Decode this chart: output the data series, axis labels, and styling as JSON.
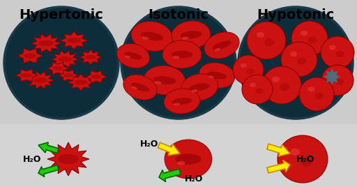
{
  "bg_color": "#d4d4d4",
  "title_hypertonic": "Hypertonic",
  "title_isotonic": "Isotonic",
  "title_hypotonic": "Hypotonic",
  "title_fontsize": 14,
  "title_fontweight": "bold",
  "circle_bg": "#0d2d3a",
  "rbc_color": "#cc1111",
  "rbc_dark": "#8b0000",
  "rbc_mid": "#bb1111",
  "arrow_green": "#22cc00",
  "arrow_green_edge": "#006600",
  "arrow_yellow": "#ffee00",
  "arrow_yellow_edge": "#cc8800",
  "water_label": "H₂O",
  "water_fontsize": 8,
  "top_panel_bg": "#c8c8c8",
  "white": "#ffffff"
}
